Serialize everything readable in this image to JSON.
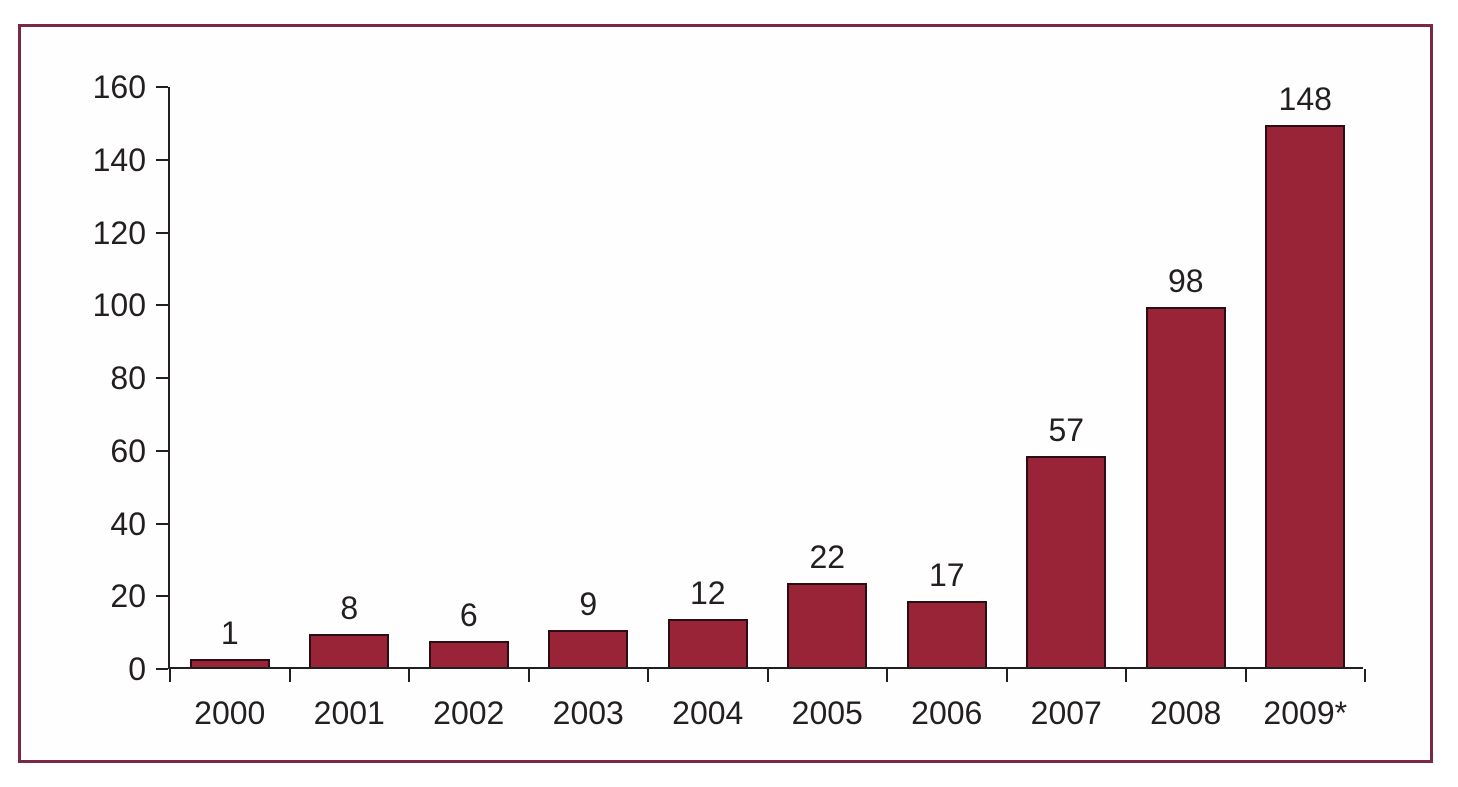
{
  "chart_data": {
    "type": "bar",
    "title": "",
    "xlabel": "",
    "ylabel": "",
    "categories": [
      "2000",
      "2001",
      "2002",
      "2003",
      "2004",
      "2005",
      "2006",
      "2007",
      "2008",
      "2009*"
    ],
    "values": [
      1,
      8,
      6,
      9,
      12,
      22,
      17,
      57,
      98,
      148
    ],
    "bar_labels": [
      "1",
      "8",
      "6",
      "9",
      "12",
      "22",
      "17",
      "57",
      "98",
      "148"
    ],
    "ylim": [
      0,
      160
    ],
    "ytick_step": 20,
    "yticks": [
      0,
      20,
      40,
      60,
      80,
      100,
      120,
      140,
      160
    ],
    "grid": false,
    "legend": false
  },
  "colors": {
    "bar_fill": "#992438",
    "bar_border": "#2a0e14",
    "axis": "#231f20",
    "text": "#231f20",
    "frame_border": "#7a2945",
    "background": "#ffffff"
  }
}
